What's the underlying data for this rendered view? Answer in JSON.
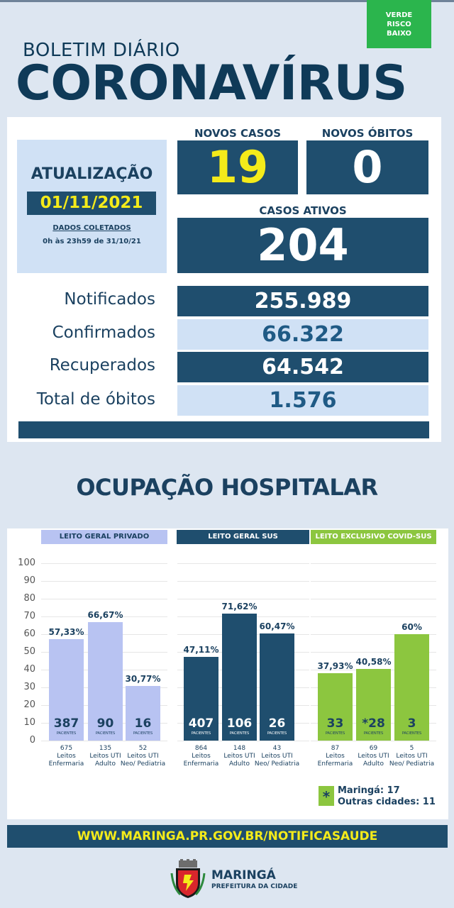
{
  "risk": {
    "line1": "VERDE",
    "line2": "RISCO",
    "line3": "BAIXO",
    "color": "#2bb54d"
  },
  "header": {
    "subtitle": "BOLETIM DIÁRIO",
    "title": "CORONAVÍRUS"
  },
  "update": {
    "title": "ATUALIZAÇÃO",
    "date": "01/11/2021",
    "collected": "DADOS COLETADOS",
    "range": "0h às 23h59 de 31/10/21"
  },
  "summary": {
    "novos_casos_label": "NOVOS CASOS",
    "novos_casos": "19",
    "novos_obitos_label": "NOVOS ÓBITOS",
    "novos_obitos": "0",
    "casos_ativos_label": "CASOS ATIVOS",
    "casos_ativos": "204"
  },
  "stats": [
    {
      "label": "Notificados",
      "value": "255.989"
    },
    {
      "label": "Confirmados",
      "value": "66.322"
    },
    {
      "label": "Recuperados",
      "value": "64.542"
    },
    {
      "label": "Total de óbitos",
      "value": "1.576"
    }
  ],
  "occupancy_title": "OCUPAÇÃO HOSPITALAR",
  "chart_data": {
    "type": "bar",
    "ylim": [
      0,
      100
    ],
    "yticks": [
      "0",
      "10",
      "20",
      "30",
      "40",
      "50",
      "60",
      "70",
      "80",
      "90",
      "100"
    ],
    "patient_label": "PACIENTES",
    "groups": [
      {
        "name": "LEITO GERAL PRIVADO",
        "color": "#b8c3f2",
        "text_color": "#1b4160",
        "bars": [
          {
            "value": 57.33,
            "pct_label": "57,33%",
            "patients": "387",
            "beds": "675",
            "bed_type": "Leitos Enfermaria"
          },
          {
            "value": 66.67,
            "pct_label": "66,67%",
            "patients": "90",
            "beds": "135",
            "bed_type": "Leitos UTI Adulto"
          },
          {
            "value": 30.77,
            "pct_label": "30,77%",
            "patients": "16",
            "beds": "52",
            "bed_type": "Leitos UTI Neo/ Pediatria"
          }
        ]
      },
      {
        "name": "LEITO GERAL SUS",
        "color": "#1f4e6e",
        "text_color": "#ffffff",
        "bars": [
          {
            "value": 47.11,
            "pct_label": "47,11%",
            "patients": "407",
            "beds": "864",
            "bed_type": "Leitos Enfermaria"
          },
          {
            "value": 71.62,
            "pct_label": "71,62%",
            "patients": "106",
            "beds": "148",
            "bed_type": "Leitos UTI Adulto"
          },
          {
            "value": 60.47,
            "pct_label": "60,47%",
            "patients": "26",
            "beds": "43",
            "bed_type": "Leitos UTI Neo/ Pediatria"
          }
        ]
      },
      {
        "name": "LEITO EXCLUSIVO COVID-SUS",
        "color": "#8cc63f",
        "text_color": "#1b4160",
        "bars": [
          {
            "value": 37.93,
            "pct_label": "37,93%",
            "patients": "33",
            "beds": "87",
            "bed_type": "Leitos Enfermaria"
          },
          {
            "value": 40.58,
            "pct_label": "40,58%",
            "patients": "*28",
            "beds": "69",
            "bed_type": "Leitos UTI Adulto"
          },
          {
            "value": 60,
            "pct_label": "60%",
            "patients": "3",
            "beds": "5",
            "bed_type": "Leitos UTI Neo/ Pediatria"
          }
        ]
      }
    ]
  },
  "footnote": {
    "symbol": "*",
    "line1": "Maringá: 17",
    "line2": "Outras cidades: 11"
  },
  "url": "WWW.MARINGA.PR.GOV.BR/NOTIFICASAUDE",
  "logo": {
    "name": "MARINGÁ",
    "sub": "PREFEITURA DA CIDADE"
  }
}
